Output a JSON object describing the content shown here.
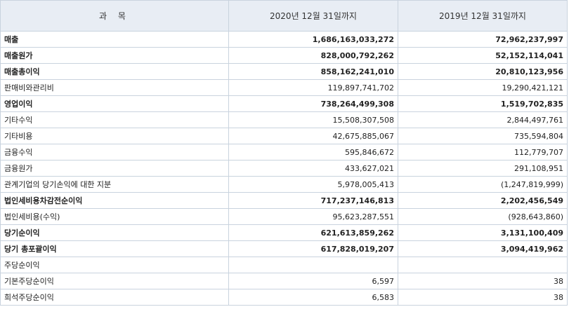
{
  "header": {
    "item": "과 목",
    "col_2020": "2020년 12월 31일까지",
    "col_2019": "2019년 12월 31일까지"
  },
  "rows": [
    {
      "label": "매출",
      "v2020": "1,686,163,033,272",
      "v2019": "72,962,237,997"
    },
    {
      "label": "매출원가",
      "v2020": "828,000,792,262",
      "v2019": "52,152,114,041"
    },
    {
      "label": "매출총이익",
      "v2020": "858,162,241,010",
      "v2019": "20,810,123,956"
    },
    {
      "label": "판매비와관리비",
      "v2020": "119,897,741,702",
      "v2019": "19,290,421,121"
    },
    {
      "label": "영업이익",
      "v2020": "738,264,499,308",
      "v2019": "1,519,702,835"
    },
    {
      "label": "기타수익",
      "v2020": "15,508,307,508",
      "v2019": "2,844,497,761"
    },
    {
      "label": "기타비용",
      "v2020": "42,675,885,067",
      "v2019": "735,594,804"
    },
    {
      "label": "금융수익",
      "v2020": "595,846,672",
      "v2019": "112,779,707"
    },
    {
      "label": "금융원가",
      "v2020": "433,627,021",
      "v2019": "291,108,951"
    },
    {
      "label": "관계기업의 당기손익에 대한 지분",
      "v2020": "5,978,005,413",
      "v2019": "(1,247,819,999)"
    },
    {
      "label": "법인세비용차감전순이익",
      "v2020": "717,237,146,813",
      "v2019": "2,202,456,549"
    },
    {
      "label": "법인세비용(수익)",
      "v2020": "95,623,287,551",
      "v2019": "(928,643,860)"
    },
    {
      "label": "당기순이익",
      "v2020": "621,613,859,262",
      "v2019": "3,131,100,409"
    },
    {
      "label": "당기 총포괄이익",
      "v2020": "617,828,019,207",
      "v2019": "3,094,419,962"
    },
    {
      "label": "주당순이익",
      "v2020": "",
      "v2019": ""
    },
    {
      "label": "기본주당순이익",
      "v2020": "6,597",
      "v2019": "38"
    },
    {
      "label": "희석주당순이익",
      "v2020": "6,583",
      "v2019": "38"
    }
  ]
}
